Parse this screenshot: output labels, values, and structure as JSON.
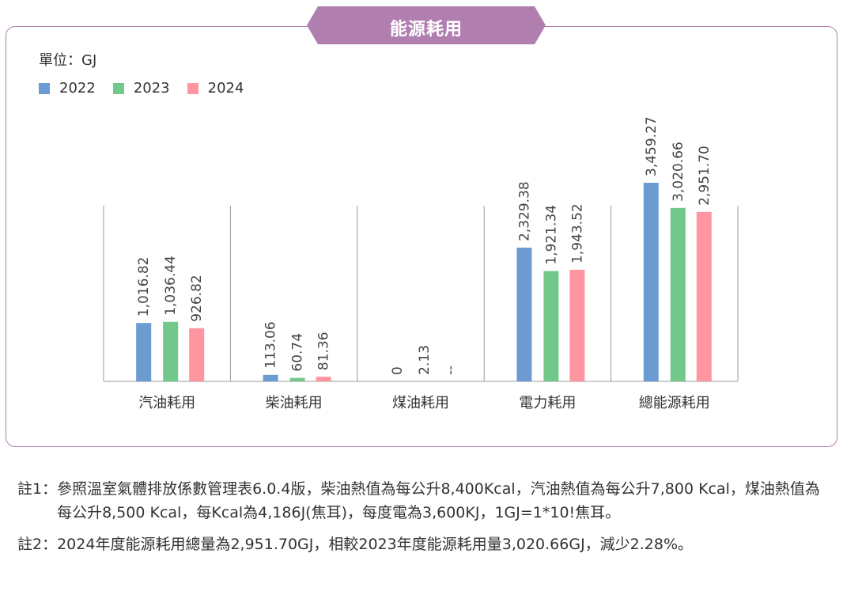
{
  "title": "能源耗用",
  "unit_label": "單位：GJ",
  "colors": {
    "2022": "#6b9bd1",
    "2023": "#72c78a",
    "2024": "#ff95a0",
    "accent": "#b07fb0"
  },
  "chart_data": {
    "type": "bar",
    "title": "能源耗用",
    "ylabel": "單位：GJ",
    "categories": [
      "汽油耗用",
      "柴油耗用",
      "煤油耗用",
      "電力耗用",
      "總能源耗用"
    ],
    "legend_position": "top-left",
    "grid": false,
    "ylim": [
      0,
      3459.27
    ],
    "series": [
      {
        "name": "2022",
        "values": [
          1016.82,
          113.06,
          0,
          2329.38,
          3459.27
        ],
        "labels": [
          "1,016.82",
          "113.06",
          "0",
          "2,329.38",
          "3,459.27"
        ]
      },
      {
        "name": "2023",
        "values": [
          1036.44,
          60.74,
          2.13,
          1921.34,
          3020.66
        ],
        "labels": [
          "1,036.44",
          "60.74",
          "2.13",
          "1,921.34",
          "3,020.66"
        ]
      },
      {
        "name": "2024",
        "values": [
          926.82,
          81.36,
          null,
          1943.52,
          2951.7
        ],
        "labels": [
          "926.82",
          "81.36",
          "--",
          "1,943.52",
          "2,951.70"
        ]
      }
    ]
  },
  "notes": [
    {
      "label": "註1：",
      "text": "參照溫室氣體排放係數管理表6.0.4版，柴油熱值為每公升8,400Kcal，汽油熱值為每公升7,800 Kcal，煤油熱值為每公升8,500 Kcal，每Kcal為4,186J(焦耳)，每度電為3,600KJ，1GJ=1*10!焦耳。"
    },
    {
      "label": "註2：",
      "text": "2024年度能源耗用總量為2,951.70GJ，相較2023年度能源耗用量3,020.66GJ，減少2.28%。"
    }
  ]
}
